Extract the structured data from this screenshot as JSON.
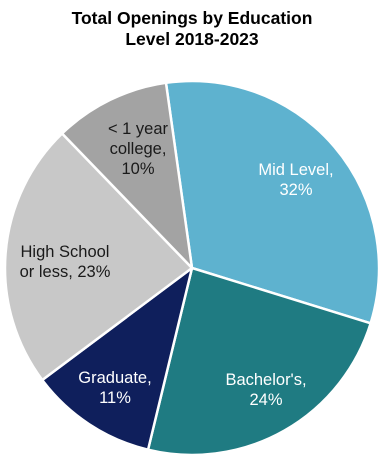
{
  "chart_data": {
    "type": "pie",
    "title": "Total Openings by Education Level 2018-2023",
    "title_lines": [
      "Total Openings by Education",
      "Level 2018-2023"
    ],
    "slices": [
      {
        "name": "Mid Level",
        "value": 32,
        "label_lines": [
          "Mid Level,",
          "32%"
        ],
        "color": "#5eb2cf",
        "label_color": "#ffffff"
      },
      {
        "name": "Bachelor's",
        "value": 24,
        "label_lines": [
          "Bachelor's,",
          "24%"
        ],
        "color": "#1f7b82",
        "label_color": "#ffffff"
      },
      {
        "name": "Graduate",
        "value": 11,
        "label_lines": [
          "Graduate,",
          "11%"
        ],
        "color": "#0f1f5c",
        "label_color": "#ffffff"
      },
      {
        "name": "High School or less",
        "value": 23,
        "label_lines": [
          "High School",
          "or less, 23%"
        ],
        "color": "#c8c8c8",
        "label_color": "#1a1a1a"
      },
      {
        "name": "< 1 year college",
        "value": 10,
        "label_lines": [
          "< 1 year",
          "college,",
          "10%"
        ],
        "color": "#a3a3a3",
        "label_color": "#1a1a1a"
      }
    ],
    "start_angle_deg": -8,
    "direction": "clockwise",
    "legend": "none",
    "data_labels": "inside"
  }
}
